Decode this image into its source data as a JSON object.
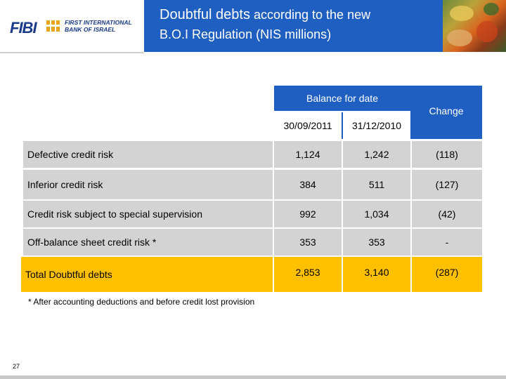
{
  "header": {
    "logo_abbrev": "FIBI",
    "logo_line1": "FIRST INTERNATIONAL",
    "logo_line2": "BANK OF ISRAEL",
    "title_part1": "Doubtful debts",
    "title_part2": " according to the new",
    "title_line2": "B.O.I Regulation (NIS millions)"
  },
  "table": {
    "group_header": "Balance for date",
    "change_header": "Change",
    "date_headers": [
      "30/09/2011",
      "31/12/2010"
    ],
    "rows": [
      {
        "label": "Defective credit risk",
        "values": [
          "1,124",
          "1,242",
          "(118)"
        ]
      },
      {
        "label": "Inferior credit risk",
        "values": [
          "384",
          "511",
          "(127)"
        ]
      },
      {
        "label": "Credit risk subject to special supervision",
        "values": [
          "992",
          "1,034",
          "(42)"
        ]
      },
      {
        "label": "Off-balance sheet credit risk *",
        "values": [
          "353",
          "353",
          "-"
        ]
      },
      {
        "label": "Total Doubtful debts",
        "values": [
          "2,853",
          "3,140",
          "(287)"
        ]
      }
    ]
  },
  "footnote": "* After accounting deductions and before credit lost provision",
  "page_number": "27",
  "colors": {
    "header_blue": "#1f5fc2",
    "row_gray": "#d3d3d3",
    "total_gold": "#ffc000",
    "logo_navy": "#1a3a8c"
  }
}
